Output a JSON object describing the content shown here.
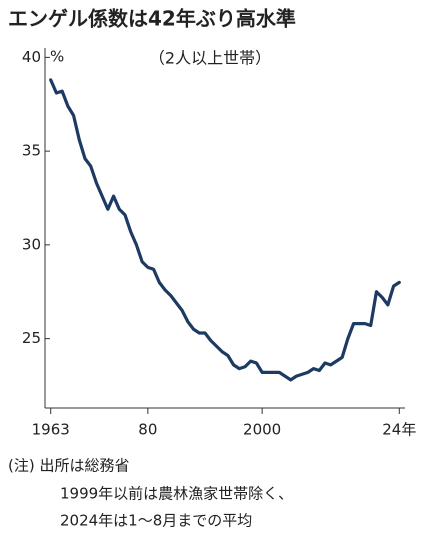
{
  "chart_data": {
    "type": "line",
    "title": "エンゲル係数は42年ぶり高水準",
    "subtitle": "（2人以上世帯）",
    "y_unit": "%",
    "notes": [
      "(注) 出所は総務省",
      "1999年以前は農林漁家世帯除く、",
      "2024年は1～8月までの平均"
    ],
    "x": [
      1963,
      1964,
      1965,
      1966,
      1967,
      1968,
      1969,
      1970,
      1971,
      1972,
      1973,
      1974,
      1975,
      1976,
      1977,
      1978,
      1979,
      1980,
      1981,
      1982,
      1983,
      1984,
      1985,
      1986,
      1987,
      1988,
      1989,
      1990,
      1991,
      1992,
      1993,
      1994,
      1995,
      1996,
      1997,
      1998,
      1999,
      2000,
      2001,
      2002,
      2003,
      2004,
      2005,
      2006,
      2007,
      2008,
      2009,
      2010,
      2011,
      2012,
      2013,
      2014,
      2015,
      2016,
      2017,
      2018,
      2019,
      2020,
      2021,
      2022,
      2023,
      2024
    ],
    "series": [
      {
        "color": "#1d3a63",
        "values": [
          38.8,
          38.1,
          38.2,
          37.4,
          36.9,
          35.6,
          34.6,
          34.2,
          33.3,
          32.6,
          31.9,
          32.6,
          31.9,
          31.6,
          30.7,
          30.0,
          29.1,
          28.8,
          28.7,
          28.0,
          27.6,
          27.3,
          26.9,
          26.5,
          25.9,
          25.5,
          25.3,
          25.3,
          24.9,
          24.6,
          24.3,
          24.1,
          23.6,
          23.4,
          23.5,
          23.8,
          23.7,
          23.2,
          23.2,
          23.2,
          23.2,
          23.0,
          22.8,
          23.0,
          23.1,
          23.2,
          23.4,
          23.3,
          23.7,
          23.6,
          23.8,
          24.0,
          25.0,
          25.8,
          25.8,
          25.8,
          25.7,
          27.5,
          27.2,
          26.8,
          27.8,
          28.0
        ]
      }
    ],
    "xlim": [
      1962,
      2025
    ],
    "xticks": [
      1963,
      {
        "value": 1980,
        "label": "80"
      },
      2000,
      {
        "value": 2024,
        "label": "24年"
      }
    ],
    "ylim": [
      21.3,
      40.5
    ],
    "yticks": [
      25,
      30,
      35,
      40
    ]
  }
}
